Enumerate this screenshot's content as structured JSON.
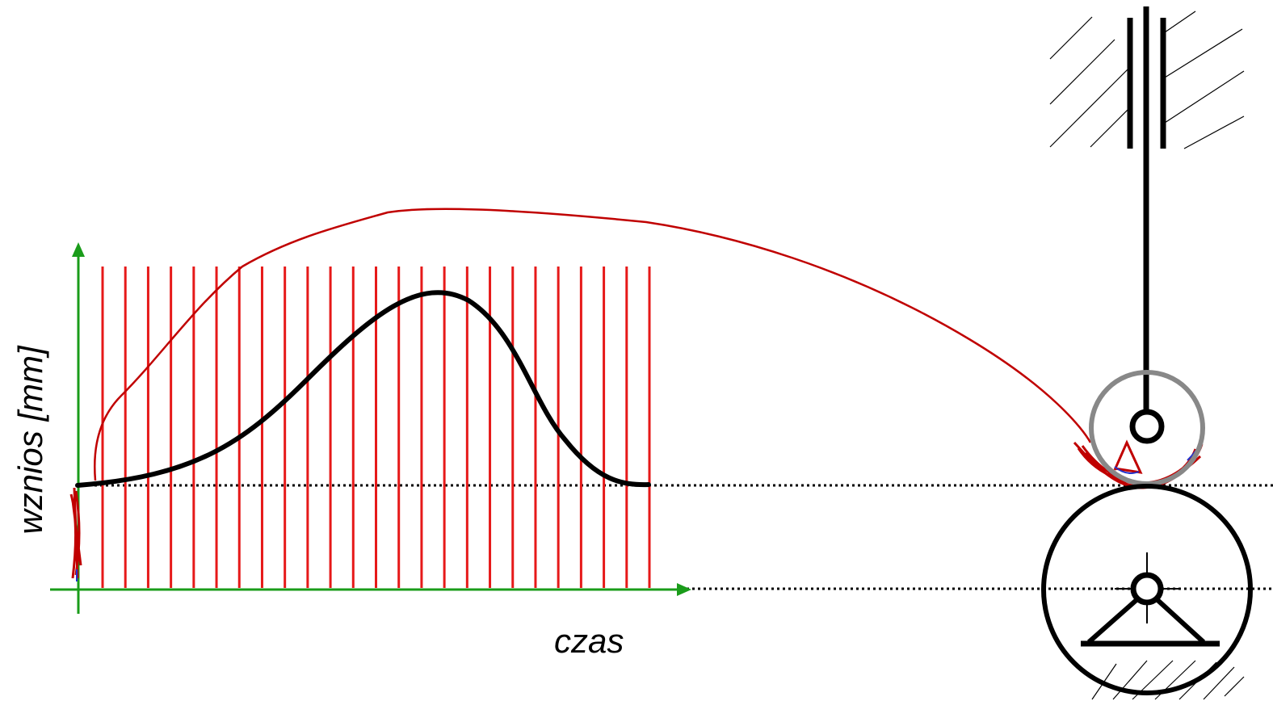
{
  "diagram": {
    "xlabel": "czas",
    "ylabel": "wznios [mm]",
    "colors": {
      "axes": "#1a9c1a",
      "sample_lines": "#e61919",
      "trace": "#c00000",
      "profile": "#000000",
      "roller": "#888888",
      "guide": "#000000"
    },
    "sample_line_count": 25
  }
}
